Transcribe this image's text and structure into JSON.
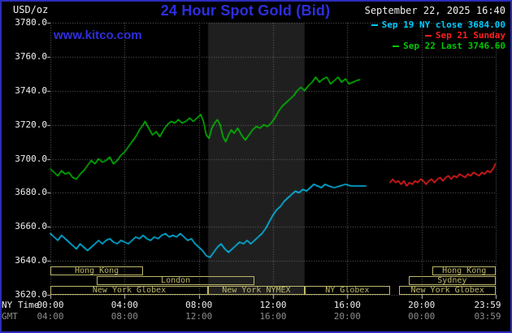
{
  "header": {
    "unit_label": "USD/oz",
    "title": "24 Hour Spot Gold (Bid)",
    "datetime": "September 22, 2025 16:40"
  },
  "watermark": "www.kitco.com",
  "legend": [
    {
      "label": "Sep 19 NY close 3684.00",
      "color": "#00ccff"
    },
    {
      "label": "Sep 21 Sunday",
      "color": "#ff1f1f"
    },
    {
      "label": "Sep 22 Last 3746.60",
      "color": "#00c800"
    }
  ],
  "colors": {
    "background": "#000000",
    "frame_border": "#2b2bbb",
    "title_blue": "#2e2ee0",
    "text_white": "#f0f0f0",
    "text_gray": "#8c8c8c",
    "grid": "#6b6b6b",
    "tick": "#c8c8c8",
    "session_khaki": "#bdb76b",
    "band": "#1f1f1f"
  },
  "axes": {
    "y_ticks": [
      "3780.0",
      "3760.0",
      "3740.0",
      "3720.0",
      "3700.0",
      "3680.0",
      "3660.0",
      "3640.0",
      "3620.0"
    ],
    "x_rows": [
      {
        "name": "NY Time",
        "color": "#f0f0f0",
        "labels": [
          "00:00",
          "04:00",
          "08:00",
          "12:00",
          "16:00",
          "20:00",
          "23:59"
        ]
      },
      {
        "name": "GMT",
        "color": "#8c8c8c",
        "labels": [
          "04:00",
          "08:00",
          "12:00",
          "16:00",
          "20:00",
          "00:00",
          "03:59"
        ]
      }
    ]
  },
  "sessions": [
    {
      "label": "Hong Kong",
      "row": 0,
      "start": 0,
      "end": 5.0
    },
    {
      "label": "Hong Kong",
      "row": 0,
      "start": 20.6,
      "end": 24
    },
    {
      "label": "London",
      "row": 1,
      "start": 2.5,
      "end": 11.0
    },
    {
      "label": "Sydney",
      "row": 1,
      "start": 19.3,
      "end": 24
    },
    {
      "label": "New York Globex",
      "row": 2,
      "start": 0,
      "end": 8.5
    },
    {
      "label": "New York NYMEX",
      "row": 2,
      "start": 8.5,
      "end": 13.7
    },
    {
      "label": "NY Globex",
      "row": 2,
      "start": 13.7,
      "end": 18.3
    },
    {
      "label": "New York Globex",
      "row": 2,
      "start": 18.8,
      "end": 24
    }
  ],
  "chart_data": {
    "type": "line",
    "title": "24 Hour Spot Gold (Bid)",
    "ylabel": "USD/oz",
    "xlim": [
      0,
      24
    ],
    "ylim": [
      3620,
      3780
    ],
    "y_tick_step": 20,
    "x_tick_hours": [
      0,
      4,
      8,
      12,
      16,
      20,
      23.983
    ],
    "grid": true,
    "legend_position": "top-right",
    "highlight_band": {
      "x0": 8.5,
      "x1": 13.7,
      "color": "#1f1f1f"
    },
    "series": [
      {
        "name": "Sep 19 NY close",
        "color": "#00ccff",
        "close": 3684.0,
        "points": [
          [
            0,
            3656
          ],
          [
            0.2,
            3654
          ],
          [
            0.4,
            3652
          ],
          [
            0.6,
            3655
          ],
          [
            0.8,
            3653
          ],
          [
            1,
            3651
          ],
          [
            1.2,
            3649
          ],
          [
            1.4,
            3647
          ],
          [
            1.6,
            3650
          ],
          [
            1.8,
            3648
          ],
          [
            2,
            3646
          ],
          [
            2.2,
            3648
          ],
          [
            2.4,
            3650
          ],
          [
            2.6,
            3652
          ],
          [
            2.8,
            3650
          ],
          [
            3,
            3652
          ],
          [
            3.2,
            3653
          ],
          [
            3.4,
            3651
          ],
          [
            3.6,
            3650
          ],
          [
            3.8,
            3652
          ],
          [
            4,
            3651
          ],
          [
            4.2,
            3650
          ],
          [
            4.4,
            3652
          ],
          [
            4.6,
            3654
          ],
          [
            4.8,
            3653
          ],
          [
            5,
            3655
          ],
          [
            5.2,
            3653
          ],
          [
            5.4,
            3652
          ],
          [
            5.6,
            3654
          ],
          [
            5.8,
            3653
          ],
          [
            6,
            3655
          ],
          [
            6.2,
            3656
          ],
          [
            6.4,
            3654
          ],
          [
            6.6,
            3655
          ],
          [
            6.8,
            3654
          ],
          [
            7,
            3656
          ],
          [
            7.2,
            3654
          ],
          [
            7.4,
            3652
          ],
          [
            7.6,
            3653
          ],
          [
            7.8,
            3650
          ],
          [
            8,
            3648
          ],
          [
            8.2,
            3646
          ],
          [
            8.4,
            3643
          ],
          [
            8.6,
            3642
          ],
          [
            8.8,
            3645
          ],
          [
            9,
            3648
          ],
          [
            9.2,
            3650
          ],
          [
            9.4,
            3647
          ],
          [
            9.6,
            3645
          ],
          [
            9.8,
            3647
          ],
          [
            10,
            3649
          ],
          [
            10.2,
            3651
          ],
          [
            10.4,
            3650
          ],
          [
            10.6,
            3652
          ],
          [
            10.8,
            3650
          ],
          [
            11,
            3652
          ],
          [
            11.2,
            3654
          ],
          [
            11.4,
            3656
          ],
          [
            11.6,
            3659
          ],
          [
            11.8,
            3663
          ],
          [
            12,
            3667
          ],
          [
            12.2,
            3670
          ],
          [
            12.4,
            3672
          ],
          [
            12.6,
            3675
          ],
          [
            12.8,
            3677
          ],
          [
            13,
            3679
          ],
          [
            13.2,
            3681
          ],
          [
            13.4,
            3680
          ],
          [
            13.6,
            3682
          ],
          [
            13.8,
            3681
          ],
          [
            14,
            3683
          ],
          [
            14.2,
            3685
          ],
          [
            14.4,
            3684
          ],
          [
            14.6,
            3683
          ],
          [
            14.8,
            3685
          ],
          [
            15,
            3684
          ],
          [
            15.3,
            3683
          ],
          [
            15.6,
            3684
          ],
          [
            15.9,
            3685
          ],
          [
            16.2,
            3684
          ],
          [
            16.5,
            3684
          ],
          [
            16.8,
            3684
          ],
          [
            17,
            3684
          ]
        ]
      },
      {
        "name": "Sep 21 Sunday",
        "color": "#ff1f1f",
        "points": [
          [
            18.3,
            3686
          ],
          [
            18.45,
            3688
          ],
          [
            18.6,
            3686
          ],
          [
            18.75,
            3687
          ],
          [
            18.9,
            3685
          ],
          [
            19.05,
            3687
          ],
          [
            19.2,
            3684
          ],
          [
            19.35,
            3686
          ],
          [
            19.5,
            3685
          ],
          [
            19.65,
            3687
          ],
          [
            19.8,
            3686
          ],
          [
            19.95,
            3688
          ],
          [
            20.1,
            3687
          ],
          [
            20.25,
            3685
          ],
          [
            20.4,
            3687
          ],
          [
            20.55,
            3688
          ],
          [
            20.7,
            3686
          ],
          [
            20.85,
            3688
          ],
          [
            21,
            3689
          ],
          [
            21.15,
            3687
          ],
          [
            21.3,
            3689
          ],
          [
            21.45,
            3690
          ],
          [
            21.6,
            3688
          ],
          [
            21.75,
            3690
          ],
          [
            21.9,
            3689
          ],
          [
            22.05,
            3691
          ],
          [
            22.2,
            3690
          ],
          [
            22.35,
            3689
          ],
          [
            22.5,
            3691
          ],
          [
            22.65,
            3690
          ],
          [
            22.8,
            3692
          ],
          [
            22.95,
            3691
          ],
          [
            23.1,
            3690
          ],
          [
            23.25,
            3692
          ],
          [
            23.4,
            3691
          ],
          [
            23.55,
            3693
          ],
          [
            23.7,
            3692
          ],
          [
            23.85,
            3694
          ],
          [
            23.98,
            3697
          ]
        ]
      },
      {
        "name": "Sep 22 Last",
        "color": "#00c800",
        "last": 3746.6,
        "points": [
          [
            0,
            3694
          ],
          [
            0.2,
            3692
          ],
          [
            0.4,
            3690
          ],
          [
            0.6,
            3693
          ],
          [
            0.8,
            3691
          ],
          [
            1,
            3692
          ],
          [
            1.2,
            3689
          ],
          [
            1.4,
            3688
          ],
          [
            1.6,
            3691
          ],
          [
            1.8,
            3693
          ],
          [
            2,
            3696
          ],
          [
            2.2,
            3699
          ],
          [
            2.4,
            3697
          ],
          [
            2.6,
            3700
          ],
          [
            2.8,
            3698
          ],
          [
            3,
            3699
          ],
          [
            3.2,
            3701
          ],
          [
            3.4,
            3697
          ],
          [
            3.6,
            3699
          ],
          [
            3.8,
            3702
          ],
          [
            4,
            3704
          ],
          [
            4.2,
            3707
          ],
          [
            4.4,
            3710
          ],
          [
            4.6,
            3713
          ],
          [
            4.8,
            3717
          ],
          [
            5,
            3720
          ],
          [
            5.1,
            3722
          ],
          [
            5.3,
            3718
          ],
          [
            5.5,
            3714
          ],
          [
            5.7,
            3716
          ],
          [
            5.9,
            3713
          ],
          [
            6.1,
            3717
          ],
          [
            6.3,
            3720
          ],
          [
            6.5,
            3722
          ],
          [
            6.7,
            3721
          ],
          [
            6.9,
            3723
          ],
          [
            7.1,
            3721
          ],
          [
            7.3,
            3722
          ],
          [
            7.5,
            3724
          ],
          [
            7.7,
            3722
          ],
          [
            7.9,
            3724
          ],
          [
            8.1,
            3726
          ],
          [
            8.25,
            3722
          ],
          [
            8.4,
            3714
          ],
          [
            8.55,
            3712
          ],
          [
            8.7,
            3718
          ],
          [
            8.85,
            3721
          ],
          [
            9,
            3723
          ],
          [
            9.15,
            3720
          ],
          [
            9.3,
            3713
          ],
          [
            9.45,
            3710
          ],
          [
            9.6,
            3714
          ],
          [
            9.75,
            3717
          ],
          [
            9.9,
            3715
          ],
          [
            10.1,
            3718
          ],
          [
            10.3,
            3714
          ],
          [
            10.5,
            3711
          ],
          [
            10.7,
            3714
          ],
          [
            10.9,
            3717
          ],
          [
            11.1,
            3719
          ],
          [
            11.3,
            3718
          ],
          [
            11.5,
            3720
          ],
          [
            11.7,
            3719
          ],
          [
            11.9,
            3721
          ],
          [
            12.1,
            3724
          ],
          [
            12.3,
            3728
          ],
          [
            12.5,
            3731
          ],
          [
            12.7,
            3733
          ],
          [
            12.9,
            3735
          ],
          [
            13.1,
            3737
          ],
          [
            13.3,
            3740
          ],
          [
            13.5,
            3742
          ],
          [
            13.7,
            3740
          ],
          [
            13.9,
            3743
          ],
          [
            14.1,
            3745
          ],
          [
            14.3,
            3748
          ],
          [
            14.5,
            3745
          ],
          [
            14.7,
            3747
          ],
          [
            14.9,
            3748
          ],
          [
            15.1,
            3744
          ],
          [
            15.3,
            3746
          ],
          [
            15.5,
            3748
          ],
          [
            15.7,
            3745
          ],
          [
            15.9,
            3747
          ],
          [
            16.1,
            3744
          ],
          [
            16.3,
            3745
          ],
          [
            16.5,
            3746
          ],
          [
            16.67,
            3746.6
          ]
        ]
      }
    ]
  }
}
